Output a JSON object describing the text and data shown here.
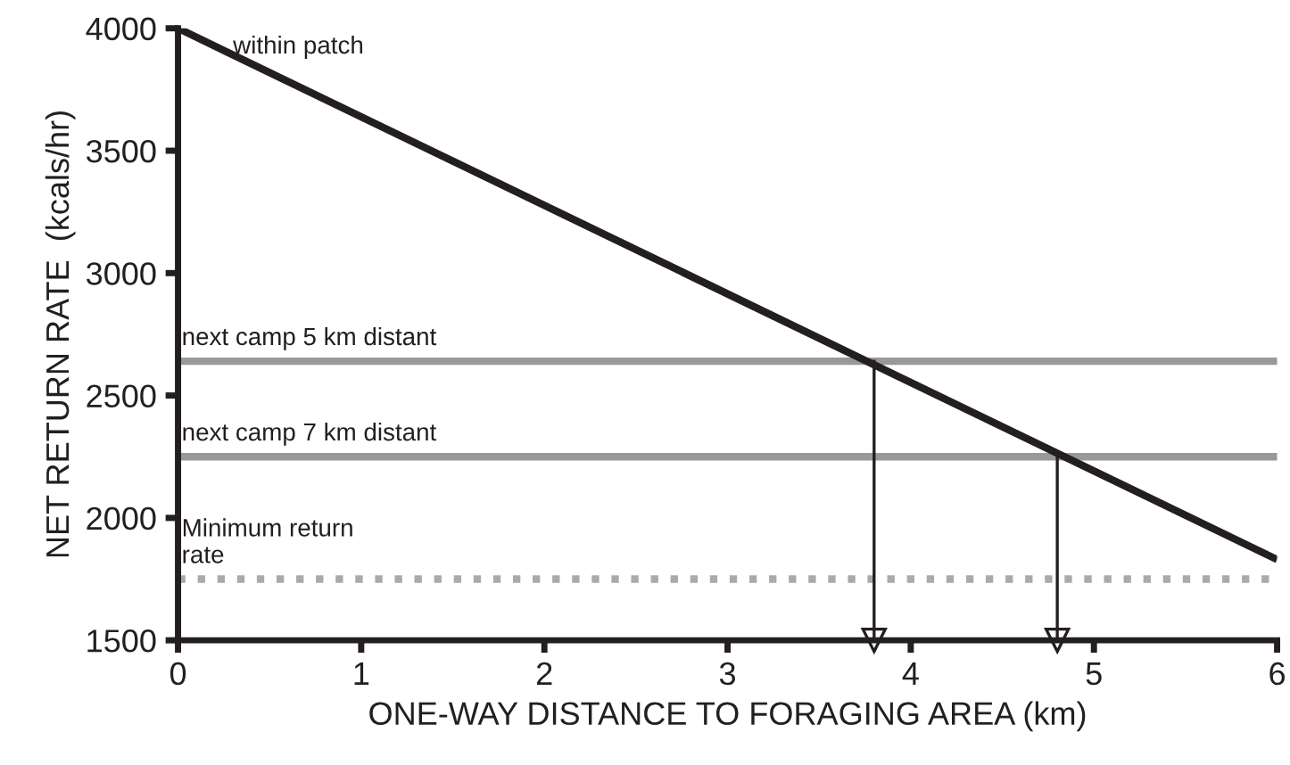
{
  "chart_data": {
    "type": "line",
    "xlabel": "ONE-WAY DISTANCE TO FORAGING AREA (km)",
    "ylabel": "NET RETURN RATE  (kcals/hr)",
    "xlim": [
      0,
      6
    ],
    "ylim": [
      1500,
      4000
    ],
    "xticks": [
      0,
      1,
      2,
      3,
      4,
      5,
      6
    ],
    "yticks": [
      1500,
      2000,
      2500,
      3000,
      3500,
      4000
    ],
    "grid": false,
    "legend": false,
    "marker": "none",
    "series": [
      {
        "name": "within patch",
        "color": "#231f20",
        "x": [
          0,
          6
        ],
        "values": [
          4000,
          1830
        ]
      },
      {
        "type": "line",
        "marker": "triangle",
        "color": "#231f20",
        "x": [
          3.8,
          3.8
        ],
        "values": [
          2640,
          1500
        ]
      },
      {
        "type": "line",
        "marker": "triangle",
        "color": "#231f20",
        "x": [
          4.8,
          4.8
        ],
        "values": [
          2250,
          1500
        ]
      }
    ],
    "ref_lines": [
      {
        "axis": "y",
        "value": 2640,
        "label": "next camp 5 km distant",
        "color": "#999999",
        "line_style": "solid"
      },
      {
        "axis": "y",
        "value": 2250,
        "label": "next camp 7 km distant",
        "color": "#999999",
        "line_style": "solid"
      },
      {
        "axis": "y",
        "value": 1750,
        "label": "Minimum return rate",
        "color": "#aaaaaa",
        "line_style": "dotted"
      }
    ]
  }
}
